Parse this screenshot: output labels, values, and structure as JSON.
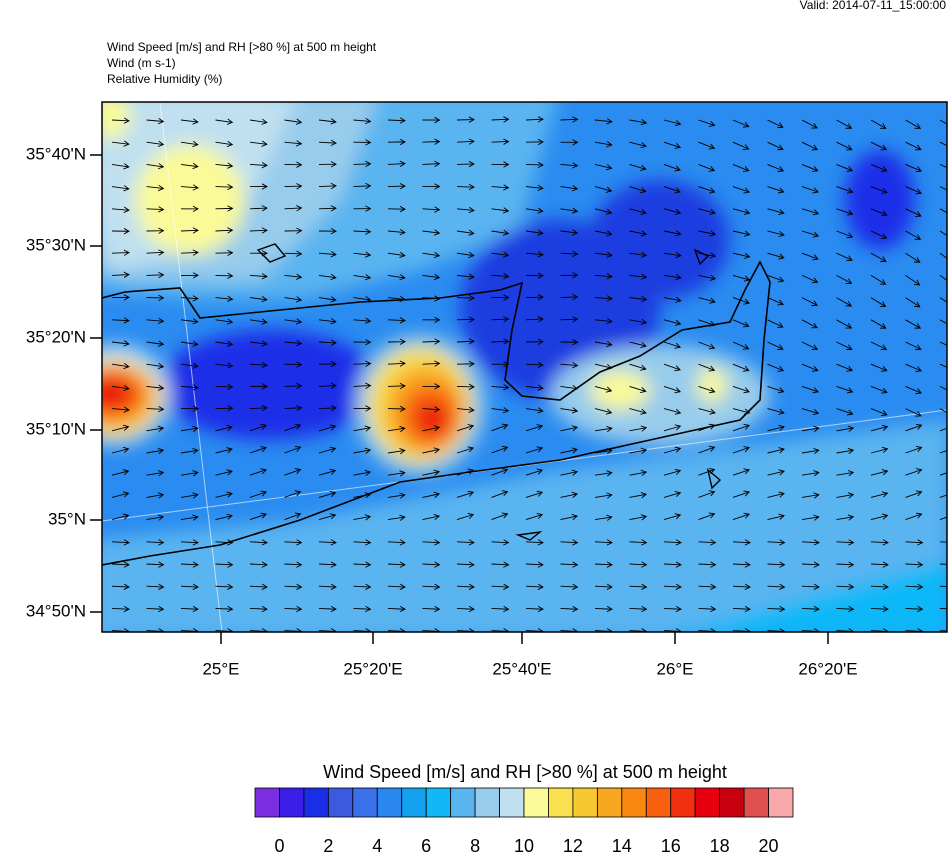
{
  "header": {
    "valid": "Valid: 2014-07-11_15:00:00",
    "lines": [
      "Wind Speed [m/s] and RH [>80 %] at 500 m height",
      "Wind   (m s-1)",
      "Relative Humidity   (%)"
    ]
  },
  "map": {
    "lat_labels": [
      "35°40'N",
      "35°30'N",
      "35°20'N",
      "35°10'N",
      "35°N",
      "34°50'N"
    ],
    "lon_labels": [
      "25°E",
      "25°20'E",
      "25°40'E",
      "26°E",
      "26°20'E"
    ]
  },
  "colorbar": {
    "title": "Wind Speed [m/s] and RH [>80 %] at 500 m height",
    "colors": [
      "#7b2ee0",
      "#3a1ee8",
      "#1a2ee8",
      "#3a5ae0",
      "#3a70e8",
      "#2a88f0",
      "#15a0f0",
      "#10b8f8",
      "#5ab4f0",
      "#98ccec",
      "#c0e0f0",
      "#fafa98",
      "#f8e050",
      "#f8c830",
      "#f8a820",
      "#f88810",
      "#f86010",
      "#f03010",
      "#e80010",
      "#c80010",
      "#e05050",
      "#f8a8a8"
    ],
    "ticks": [
      0,
      2,
      4,
      6,
      8,
      10,
      12,
      14,
      16,
      18,
      20
    ]
  }
}
